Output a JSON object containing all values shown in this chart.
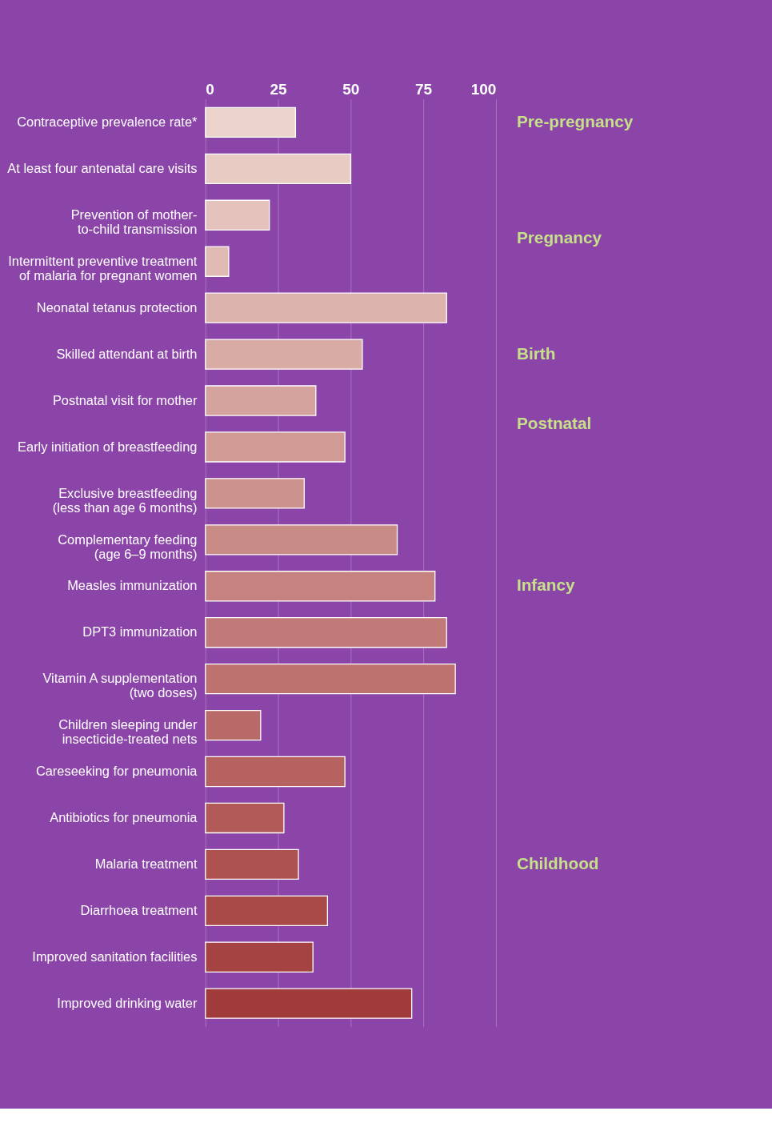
{
  "chart_data": {
    "type": "bar",
    "orientation": "horizontal",
    "categories": [
      "Contraceptive prevalence rate*",
      "At least four antenatal care visits",
      "Prevention of mother-\nto-child transmission",
      "Intermittent preventive treatment\nof malaria for pregnant women",
      "Neonatal tetanus protection",
      "Skilled attendant at birth",
      "Postnatal visit for mother",
      "Early initiation of breastfeeding",
      "Exclusive breastfeeding\n(less than age 6 months)",
      "Complementary feeding\n(age 6–9 months)",
      "Measles immunization",
      "DPT3 immunization",
      "Vitamin A supplementation\n(two doses)",
      "Children sleeping under\ninsecticide-treated nets",
      "Careseeking for pneumonia",
      "Antibiotics for pneumonia",
      "Malaria treatment",
      "Diarrhoea treatment",
      "Improved sanitation facilities",
      "Improved drinking water"
    ],
    "values": [
      31,
      50,
      22,
      8,
      83,
      54,
      38,
      48,
      34,
      66,
      79,
      83,
      86,
      19,
      48,
      27,
      32,
      42,
      37,
      71
    ],
    "colors": [
      "#ecd3cb",
      "#e8cbc3",
      "#e4c3bc",
      "#e0bbb4",
      "#dcb3ac",
      "#d8aba5",
      "#d4a39d",
      "#d09b95",
      "#cc938e",
      "#c88b86",
      "#c5827f",
      "#c17a77",
      "#bd726f",
      "#b96a68",
      "#b56260",
      "#b15a58",
      "#ad5251",
      "#a94a49",
      "#a54242",
      "#a13a3a"
    ],
    "xlim": [
      0,
      100
    ],
    "xticks": [
      0,
      25,
      50,
      75,
      100
    ],
    "grid": "x",
    "annotations": [
      "Pre-pregnancy",
      "Pregnancy",
      "Birth",
      "Postnatal",
      "Infancy",
      "Childhood"
    ]
  }
}
